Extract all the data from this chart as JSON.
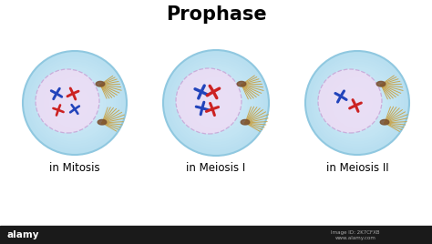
{
  "title": "Prophase",
  "title_fontsize": 15,
  "title_fontweight": "bold",
  "labels": [
    "in Mitosis",
    "in Meiosis I",
    "in Meiosis II"
  ],
  "label_fontsize": 8.5,
  "background_color": "#ffffff",
  "cell_color_outer": "#b8dff0",
  "cell_color_inner": "#daf0fb",
  "cell_border_color": "#90c8e0",
  "nucleus_color": "#ecddf5",
  "nucleus_border_color": "#c8a8d8",
  "chromosome_blue": "#2244bb",
  "chromosome_red": "#cc2222",
  "spindle_color": "#c8a040",
  "centriole_color": "#7a5030",
  "alamy_bar_color": "#1a1a1a"
}
